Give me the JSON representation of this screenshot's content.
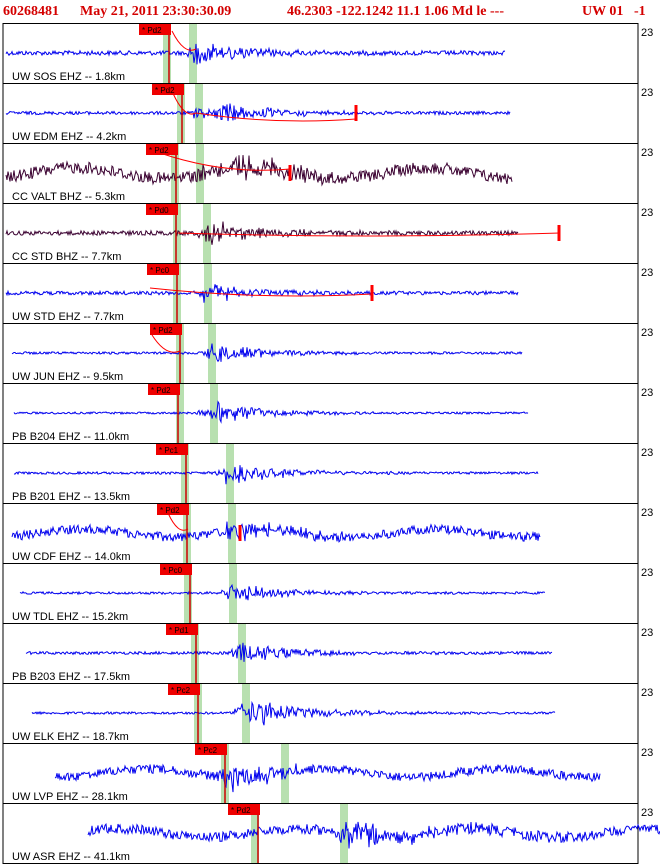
{
  "header": {
    "event_id": "60268481",
    "datetime": "May 21, 2011 23:30:30.09",
    "location": "46.2303 -122.1242 11.1 1.06 Md le ---",
    "network": "UW 01",
    "trailing": "-1"
  },
  "panel_corner_label": "23",
  "stations": [
    {
      "label": "UW SOS EHZ -- 1.8km",
      "pick": "Pd2",
      "color": "#0000ee"
    },
    {
      "label": "UW EDM EHZ -- 4.2km",
      "pick": "Pd2",
      "color": "#0000ee"
    },
    {
      "label": "CC VALT BHZ -- 5.3km",
      "pick": "Pd2",
      "color": "#3a0030"
    },
    {
      "label": "CC STD BHZ -- 7.7km",
      "pick": "Pd0",
      "color": "#3a0030"
    },
    {
      "label": "UW STD EHZ -- 7.7km",
      "pick": "Pc0",
      "color": "#0000ee"
    },
    {
      "label": "UW JUN EHZ -- 9.5km",
      "pick": "Pd2",
      "color": "#0000ee"
    },
    {
      "label": "PB B204 EHZ -- 11.0km",
      "pick": "Pd2",
      "color": "#0000ee"
    },
    {
      "label": "PB B201 EHZ -- 13.5km",
      "pick": "Pc1",
      "color": "#0000ee"
    },
    {
      "label": "UW CDF EHZ -- 14.0km",
      "pick": "Pd2",
      "color": "#0000ee"
    },
    {
      "label": "UW TDL EHZ -- 15.2km",
      "pick": "Pc0",
      "color": "#0000ee"
    },
    {
      "label": "PB B203 EHZ -- 17.5km",
      "pick": "Pd1",
      "color": "#0000ee"
    },
    {
      "label": "UW ELK EHZ -- 18.7km",
      "pick": "Pc2",
      "color": "#0000ee"
    },
    {
      "label": "UW LVP EHZ -- 28.1km",
      "pick": "Pc2",
      "color": "#0000ee"
    },
    {
      "label": "UW ASR EHZ -- 41.1km",
      "pick": "Pd2",
      "color": "#0000ee"
    }
  ],
  "colors": {
    "header_text": "#d40000",
    "pick_flag": "#ee0000",
    "window_band": "#b8e0b0",
    "blue_trace": "#0000ee",
    "dark_trace": "#3a0030"
  }
}
